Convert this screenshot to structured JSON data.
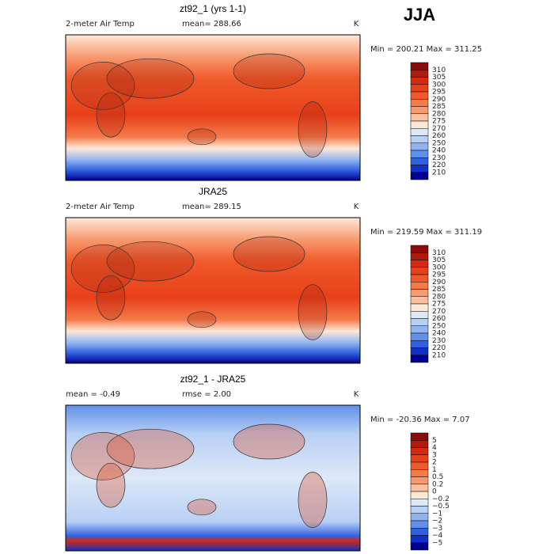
{
  "figure_title": "JJA",
  "panels": [
    {
      "title": "zt92_1 (yrs 1-1)",
      "left_label": "2-meter Air Temp",
      "center_label": "mean= 288.66",
      "units": "K",
      "range_label": "Min = 200.21 Max = 311.25",
      "colorbar": {
        "labels": [
          "310",
          "305",
          "300",
          "295",
          "290",
          "285",
          "280",
          "275",
          "270",
          "260",
          "250",
          "240",
          "230",
          "220",
          "210"
        ],
        "colors": [
          "#8b0a0a",
          "#b01a0a",
          "#d42a10",
          "#e8401a",
          "#f05a2a",
          "#f57a4a",
          "#f89a70",
          "#fbc0a0",
          "#fde8d8",
          "#dde8f8",
          "#b8d0f5",
          "#90b4f0",
          "#6090e8",
          "#3060e0",
          "#1030c8",
          "#000090"
        ]
      }
    },
    {
      "title": "JRA25",
      "left_label": "2-meter Air Temp",
      "center_label": "mean= 289.15",
      "units": "K",
      "range_label": "Min = 219.59 Max = 311.19",
      "colorbar": {
        "labels": [
          "310",
          "305",
          "300",
          "295",
          "290",
          "285",
          "280",
          "275",
          "270",
          "260",
          "250",
          "240",
          "230",
          "220",
          "210"
        ],
        "colors": [
          "#8b0a0a",
          "#b01a0a",
          "#d42a10",
          "#e8401a",
          "#f05a2a",
          "#f57a4a",
          "#f89a70",
          "#fbc0a0",
          "#fde8d8",
          "#dde8f8",
          "#b8d0f5",
          "#90b4f0",
          "#6090e8",
          "#3060e0",
          "#1030c8",
          "#000090"
        ]
      }
    },
    {
      "title": "zt92_1 - JRA25",
      "left_label": "mean =  -0.49",
      "center_label": "rmse =  2.00",
      "units": "K",
      "range_label": "Min = -20.36 Max =   7.07",
      "colorbar": {
        "labels": [
          "5",
          "4",
          "3",
          "2",
          "1",
          "0.5",
          "0.2",
          "0",
          "−0.2",
          "−0.5",
          "−1",
          "−2",
          "−3",
          "−4",
          "−5"
        ],
        "colors": [
          "#8b0a0a",
          "#b01a0a",
          "#d42a10",
          "#e8401a",
          "#f05a2a",
          "#f57a4a",
          "#f89a70",
          "#fbc0a0",
          "#fde8d8",
          "#dde8f8",
          "#b8d0f5",
          "#90b4f0",
          "#6090e8",
          "#3060e0",
          "#1030c8",
          "#000090"
        ]
      }
    }
  ]
}
